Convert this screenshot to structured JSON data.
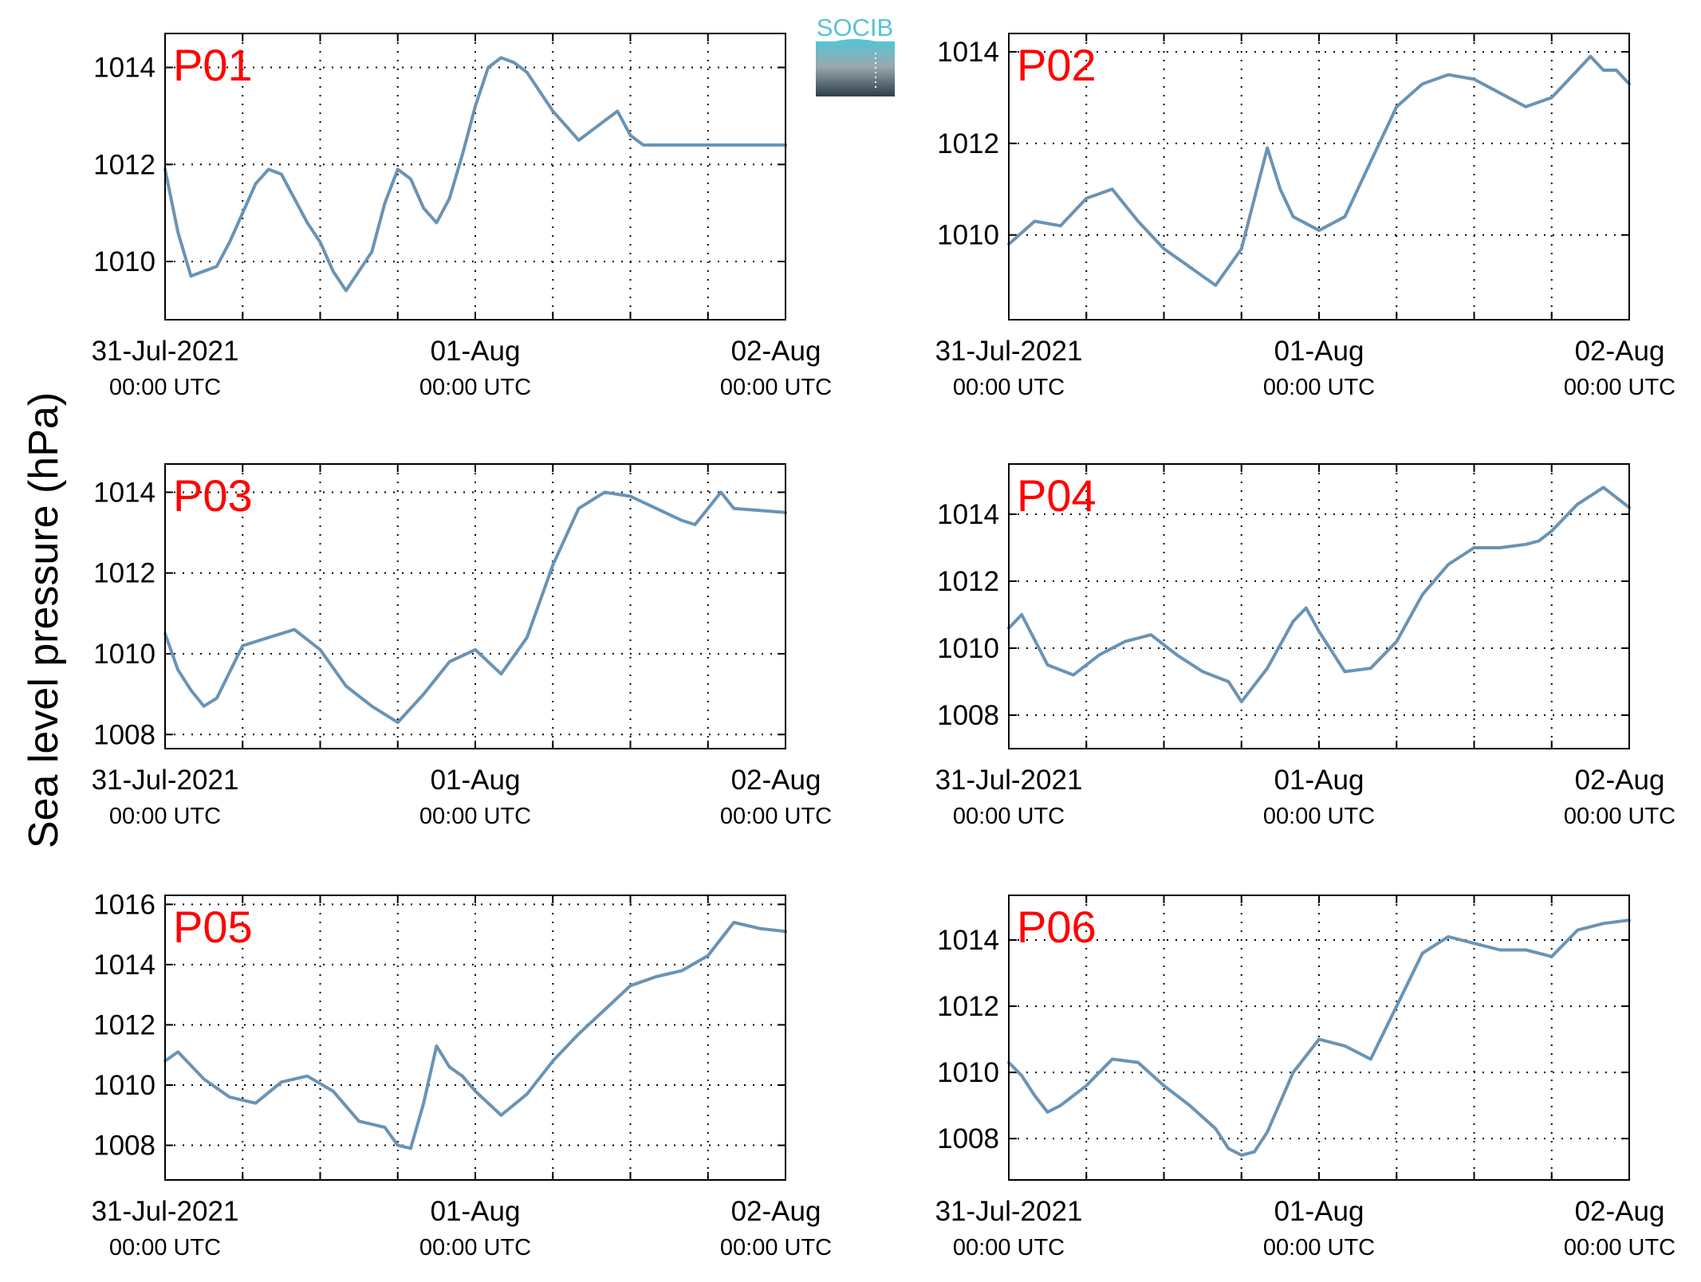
{
  "figure": {
    "ylabel": "Sea level pressure (hPa)",
    "logo_text": "SOCIB"
  },
  "colors": {
    "series": "#6a93b4",
    "panel_label": "#ff0000",
    "logo_top": "#57c3d2",
    "logo_bottom": "#2e3f4a"
  },
  "chart_data": [
    {
      "type": "line",
      "title": "P01",
      "xlim": [
        "2021-07-31 00:00 UTC",
        "2021-08-02 00:00 UTC"
      ],
      "ylim": [
        1008.8,
        1014.7
      ],
      "yticks": [
        1010,
        1012,
        1014
      ],
      "xticks": [
        {
          "label": "31-Jul-2021",
          "sub": "00:00 UTC"
        },
        {
          "label": "01-Aug",
          "sub": "00:00 UTC"
        },
        {
          "label": "02-Aug",
          "sub": "00:00 UTC"
        }
      ],
      "grid": true,
      "series": [
        {
          "x": [
            "2021-07-31 00:00",
            "2021-07-31 01:00",
            "2021-07-31 02:00",
            "2021-07-31 03:00",
            "2021-07-31 04:00",
            "2021-07-31 05:00",
            "2021-07-31 06:00",
            "2021-07-31 07:00",
            "2021-07-31 08:00",
            "2021-07-31 09:00",
            "2021-07-31 10:00",
            "2021-07-31 11:00",
            "2021-07-31 12:00",
            "2021-07-31 13:00",
            "2021-07-31 14:00",
            "2021-07-31 15:00",
            "2021-07-31 16:00",
            "2021-07-31 17:00",
            "2021-07-31 18:00",
            "2021-07-31 19:00",
            "2021-07-31 20:00",
            "2021-07-31 21:00",
            "2021-07-31 22:00",
            "2021-07-31 23:00",
            "2021-08-01 00:00",
            "2021-08-01 01:00",
            "2021-08-01 02:00",
            "2021-08-01 03:00",
            "2021-08-01 04:00",
            "2021-08-01 05:00",
            "2021-08-01 06:00",
            "2021-08-01 07:00",
            "2021-08-01 08:00",
            "2021-08-01 09:00",
            "2021-08-01 10:00",
            "2021-08-01 11:00",
            "2021-08-01 12:00",
            "2021-08-01 13:00",
            "2021-08-01 14:00",
            "2021-08-01 15:00",
            "2021-08-01 16:00",
            "2021-08-01 17:00",
            "2021-08-01 18:00",
            "2021-08-01 19:00",
            "2021-08-01 20:00",
            "2021-08-01 21:00",
            "2021-08-01 22:00",
            "2021-08-01 23:00",
            "2021-08-02 00:00"
          ],
          "values": [
            1011.9,
            1010.6,
            1009.7,
            1009.8,
            1009.9,
            1010.4,
            1011.0,
            1011.6,
            1011.9,
            1011.8,
            1011.3,
            1010.8,
            1010.4,
            1009.8,
            1009.4,
            1009.8,
            1010.2,
            1011.2,
            1011.9,
            1011.7,
            1011.1,
            1010.8,
            1011.3,
            1012.2,
            1013.2,
            1014.0,
            1014.2,
            1014.1,
            1013.9,
            1013.5,
            1013.1,
            1012.8,
            1012.5,
            1012.7,
            1012.9,
            1013.1,
            1012.6,
            1012.4,
            1012.4,
            1012.4,
            1012.4,
            1012.4,
            1012.4,
            1012.4,
            1012.4,
            1012.4,
            1012.4,
            1012.4,
            1012.4
          ]
        }
      ]
    },
    {
      "type": "line",
      "title": "P02",
      "xlim": [
        "2021-07-31 00:00 UTC",
        "2021-08-02 00:00 UTC"
      ],
      "ylim": [
        1008.15,
        1014.4
      ],
      "yticks": [
        1010,
        1012,
        1014
      ],
      "xticks": [
        {
          "label": "31-Jul-2021",
          "sub": "00:00 UTC"
        },
        {
          "label": "01-Aug",
          "sub": "00:00 UTC"
        },
        {
          "label": "02-Aug",
          "sub": "00:00 UTC"
        }
      ],
      "grid": true,
      "series": [
        {
          "x": [
            "2021-07-31 00:00",
            "2021-07-31 02:00",
            "2021-07-31 04:00",
            "2021-07-31 06:00",
            "2021-07-31 08:00",
            "2021-07-31 10:00",
            "2021-07-31 12:00",
            "2021-07-31 14:00",
            "2021-07-31 16:00",
            "2021-07-31 18:00",
            "2021-07-31 20:00",
            "2021-07-31 21:00",
            "2021-07-31 22:00",
            "2021-08-01 00:00",
            "2021-08-01 02:00",
            "2021-08-01 04:00",
            "2021-08-01 06:00",
            "2021-08-01 08:00",
            "2021-08-01 10:00",
            "2021-08-01 12:00",
            "2021-08-01 14:00",
            "2021-08-01 16:00",
            "2021-08-01 18:00",
            "2021-08-01 20:00",
            "2021-08-01 21:00",
            "2021-08-01 22:00",
            "2021-08-01 23:00",
            "2021-08-02 00:00"
          ],
          "values": [
            1009.8,
            1010.3,
            1010.2,
            1010.8,
            1011.0,
            1010.3,
            1009.7,
            1009.3,
            1008.9,
            1009.7,
            1011.9,
            1011.0,
            1010.4,
            1010.1,
            1010.4,
            1011.6,
            1012.8,
            1013.3,
            1013.5,
            1013.4,
            1013.1,
            1012.8,
            1013.0,
            1013.6,
            1013.9,
            1013.6,
            1013.6,
            1013.3
          ]
        }
      ]
    },
    {
      "type": "line",
      "title": "P03",
      "xlim": [
        "2021-07-31 00:00 UTC",
        "2021-08-02 00:00 UTC"
      ],
      "ylim": [
        1007.65,
        1014.7
      ],
      "yticks": [
        1008,
        1010,
        1012,
        1014
      ],
      "xticks": [
        {
          "label": "31-Jul-2021",
          "sub": "00:00 UTC"
        },
        {
          "label": "01-Aug",
          "sub": "00:00 UTC"
        },
        {
          "label": "02-Aug",
          "sub": "00:00 UTC"
        }
      ],
      "grid": true,
      "series": [
        {
          "x": [
            "2021-07-31 00:00",
            "2021-07-31 01:00",
            "2021-07-31 02:00",
            "2021-07-31 03:00",
            "2021-07-31 04:00",
            "2021-07-31 06:00",
            "2021-07-31 08:00",
            "2021-07-31 10:00",
            "2021-07-31 12:00",
            "2021-07-31 14:00",
            "2021-07-31 16:00",
            "2021-07-31 18:00",
            "2021-07-31 20:00",
            "2021-07-31 22:00",
            "2021-08-01 00:00",
            "2021-08-01 02:00",
            "2021-08-01 04:00",
            "2021-08-01 06:00",
            "2021-08-01 08:00",
            "2021-08-01 10:00",
            "2021-08-01 12:00",
            "2021-08-01 14:00",
            "2021-08-01 16:00",
            "2021-08-01 17:00",
            "2021-08-01 18:00",
            "2021-08-01 19:00",
            "2021-08-01 20:00",
            "2021-08-02 00:00"
          ],
          "values": [
            1010.5,
            1009.6,
            1009.1,
            1008.7,
            1008.9,
            1010.2,
            1010.4,
            1010.6,
            1010.1,
            1009.2,
            1008.7,
            1008.3,
            1009.0,
            1009.8,
            1010.1,
            1009.5,
            1010.4,
            1012.2,
            1013.6,
            1014.0,
            1013.9,
            1013.6,
            1013.3,
            1013.2,
            1013.6,
            1014.0,
            1013.6,
            1013.5
          ]
        }
      ]
    },
    {
      "type": "line",
      "title": "P04",
      "xlim": [
        "2021-07-31 00:00 UTC",
        "2021-08-02 00:00 UTC"
      ],
      "ylim": [
        1007.0,
        1015.5
      ],
      "yticks": [
        1008,
        1010,
        1012,
        1014
      ],
      "xticks": [
        {
          "label": "31-Jul-2021",
          "sub": "00:00 UTC"
        },
        {
          "label": "01-Aug",
          "sub": "00:00 UTC"
        },
        {
          "label": "02-Aug",
          "sub": "00:00 UTC"
        }
      ],
      "grid": true,
      "series": [
        {
          "x": [
            "2021-07-31 00:00",
            "2021-07-31 01:00",
            "2021-07-31 03:00",
            "2021-07-31 05:00",
            "2021-07-31 07:00",
            "2021-07-31 09:00",
            "2021-07-31 11:00",
            "2021-07-31 13:00",
            "2021-07-31 15:00",
            "2021-07-31 17:00",
            "2021-07-31 18:00",
            "2021-07-31 20:00",
            "2021-07-31 22:00",
            "2021-07-31 23:00",
            "2021-08-01 00:00",
            "2021-08-01 02:00",
            "2021-08-01 04:00",
            "2021-08-01 06:00",
            "2021-08-01 08:00",
            "2021-08-01 10:00",
            "2021-08-01 12:00",
            "2021-08-01 14:00",
            "2021-08-01 16:00",
            "2021-08-01 17:00",
            "2021-08-01 18:00",
            "2021-08-01 20:00",
            "2021-08-01 22:00",
            "2021-08-02 00:00"
          ],
          "values": [
            1010.6,
            1011.0,
            1009.5,
            1009.2,
            1009.8,
            1010.2,
            1010.4,
            1009.8,
            1009.3,
            1009.0,
            1008.4,
            1009.4,
            1010.8,
            1011.2,
            1010.5,
            1009.3,
            1009.4,
            1010.2,
            1011.6,
            1012.5,
            1013.0,
            1013.0,
            1013.1,
            1013.2,
            1013.5,
            1014.3,
            1014.8,
            1014.2
          ]
        }
      ]
    },
    {
      "type": "line",
      "title": "P05",
      "xlim": [
        "2021-07-31 00:00 UTC",
        "2021-08-02 00:00 UTC"
      ],
      "ylim": [
        1006.85,
        1016.3
      ],
      "yticks": [
        1008,
        1010,
        1012,
        1014,
        1016
      ],
      "xticks": [
        {
          "label": "31-Jul-2021",
          "sub": "00:00 UTC"
        },
        {
          "label": "01-Aug",
          "sub": "00:00 UTC"
        },
        {
          "label": "02-Aug",
          "sub": "00:00 UTC"
        }
      ],
      "grid": true,
      "series": [
        {
          "x": [
            "2021-07-31 00:00",
            "2021-07-31 01:00",
            "2021-07-31 03:00",
            "2021-07-31 05:00",
            "2021-07-31 07:00",
            "2021-07-31 09:00",
            "2021-07-31 11:00",
            "2021-07-31 13:00",
            "2021-07-31 15:00",
            "2021-07-31 17:00",
            "2021-07-31 18:00",
            "2021-07-31 19:00",
            "2021-07-31 20:00",
            "2021-07-31 21:00",
            "2021-07-31 22:00",
            "2021-07-31 23:00",
            "2021-08-01 00:00",
            "2021-08-01 02:00",
            "2021-08-01 04:00",
            "2021-08-01 06:00",
            "2021-08-01 08:00",
            "2021-08-01 10:00",
            "2021-08-01 12:00",
            "2021-08-01 14:00",
            "2021-08-01 16:00",
            "2021-08-01 18:00",
            "2021-08-01 20:00",
            "2021-08-01 22:00",
            "2021-08-02 00:00"
          ],
          "values": [
            1010.8,
            1011.1,
            1010.2,
            1009.6,
            1009.4,
            1010.1,
            1010.3,
            1009.8,
            1008.8,
            1008.6,
            1008.0,
            1007.9,
            1009.4,
            1011.3,
            1010.6,
            1010.3,
            1009.8,
            1009.0,
            1009.7,
            1010.8,
            1011.7,
            1012.5,
            1013.3,
            1013.6,
            1013.8,
            1014.3,
            1015.4,
            1015.2,
            1015.1
          ]
        }
      ]
    },
    {
      "type": "line",
      "title": "P06",
      "xlim": [
        "2021-07-31 00:00 UTC",
        "2021-08-02 00:00 UTC"
      ],
      "ylim": [
        1006.75,
        1015.35
      ],
      "yticks": [
        1008,
        1010,
        1012,
        1014
      ],
      "xticks": [
        {
          "label": "31-Jul-2021",
          "sub": "00:00 UTC"
        },
        {
          "label": "01-Aug",
          "sub": "00:00 UTC"
        },
        {
          "label": "02-Aug",
          "sub": "00:00 UTC"
        }
      ],
      "grid": true,
      "series": [
        {
          "x": [
            "2021-07-31 00:00",
            "2021-07-31 01:00",
            "2021-07-31 02:00",
            "2021-07-31 03:00",
            "2021-07-31 04:00",
            "2021-07-31 06:00",
            "2021-07-31 08:00",
            "2021-07-31 10:00",
            "2021-07-31 12:00",
            "2021-07-31 14:00",
            "2021-07-31 16:00",
            "2021-07-31 17:00",
            "2021-07-31 18:00",
            "2021-07-31 19:00",
            "2021-07-31 20:00",
            "2021-07-31 22:00",
            "2021-08-01 00:00",
            "2021-08-01 02:00",
            "2021-08-01 04:00",
            "2021-08-01 06:00",
            "2021-08-01 08:00",
            "2021-08-01 10:00",
            "2021-08-01 12:00",
            "2021-08-01 14:00",
            "2021-08-01 16:00",
            "2021-08-01 17:00",
            "2021-08-01 18:00",
            "2021-08-01 20:00",
            "2021-08-01 22:00",
            "2021-08-02 00:00"
          ],
          "values": [
            1010.3,
            1009.9,
            1009.3,
            1008.8,
            1009.0,
            1009.6,
            1010.4,
            1010.3,
            1009.6,
            1009.0,
            1008.3,
            1007.7,
            1007.5,
            1007.6,
            1008.2,
            1010.0,
            1011.0,
            1010.8,
            1010.4,
            1012.0,
            1013.6,
            1014.1,
            1013.9,
            1013.7,
            1013.7,
            1013.6,
            1013.5,
            1014.3,
            1014.5,
            1014.6
          ]
        }
      ]
    }
  ]
}
